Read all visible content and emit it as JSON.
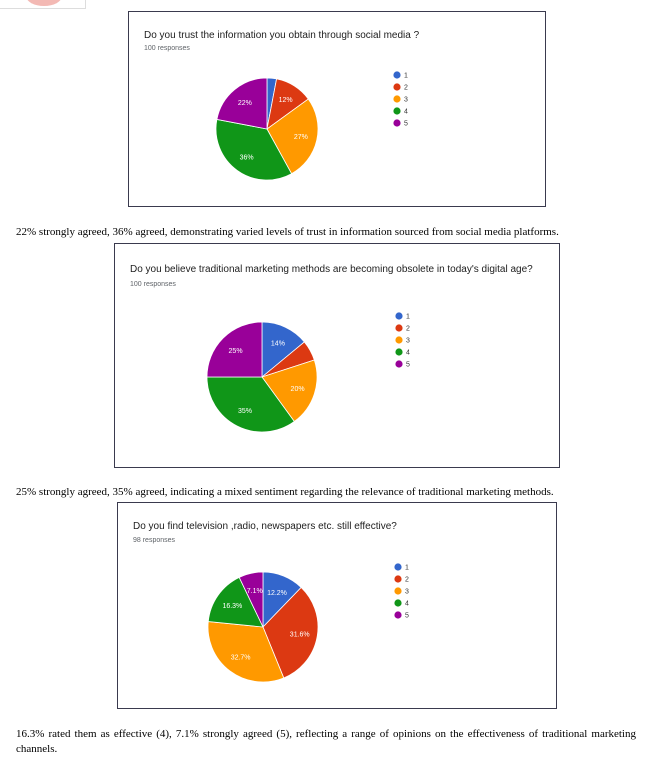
{
  "colors": {
    "c1": "#3366cc",
    "c2": "#dc3912",
    "c3": "#ff9900",
    "c4": "#109618",
    "c5": "#990099"
  },
  "chart_data": [
    {
      "type": "pie",
      "title": "Do you trust the information you obtain through social media ?",
      "responses": "100 responses",
      "legend": [
        "1",
        "2",
        "3",
        "4",
        "5"
      ],
      "values": [
        3,
        12,
        27,
        36,
        22
      ],
      "labels": [
        "",
        "12%",
        "27%",
        "36%",
        "22%"
      ],
      "legend_position": "right"
    },
    {
      "type": "pie",
      "title": "Do you believe traditional marketing methods are becoming obsolete in today's digital age?",
      "responses": "100 responses",
      "legend": [
        "1",
        "2",
        "3",
        "4",
        "5"
      ],
      "values": [
        14,
        6,
        20,
        35,
        25
      ],
      "labels": [
        "14%",
        "",
        "20%",
        "35%",
        "25%"
      ],
      "legend_position": "right"
    },
    {
      "type": "pie",
      "title": "Do you find television ,radio, newspapers etc. still effective?",
      "responses": "98 responses",
      "legend": [
        "1",
        "2",
        "3",
        "4",
        "5"
      ],
      "values": [
        12.2,
        31.6,
        32.7,
        16.3,
        7.1
      ],
      "labels": [
        "12.2%",
        "31.6%",
        "32.7%",
        "16.3%",
        "7.1%"
      ],
      "legend_position": "right"
    }
  ],
  "captions": [
    "22% strongly agreed, 36% agreed, demonstrating varied levels of trust in information sourced from social media platforms.",
    "25% strongly agreed, 35% agreed, indicating a mixed sentiment regarding the relevance of traditional marketing methods.",
    "16.3% rated them as effective (4), 7.1% strongly agreed (5), reflecting a range of opinions on the effectiveness of traditional marketing channels."
  ]
}
